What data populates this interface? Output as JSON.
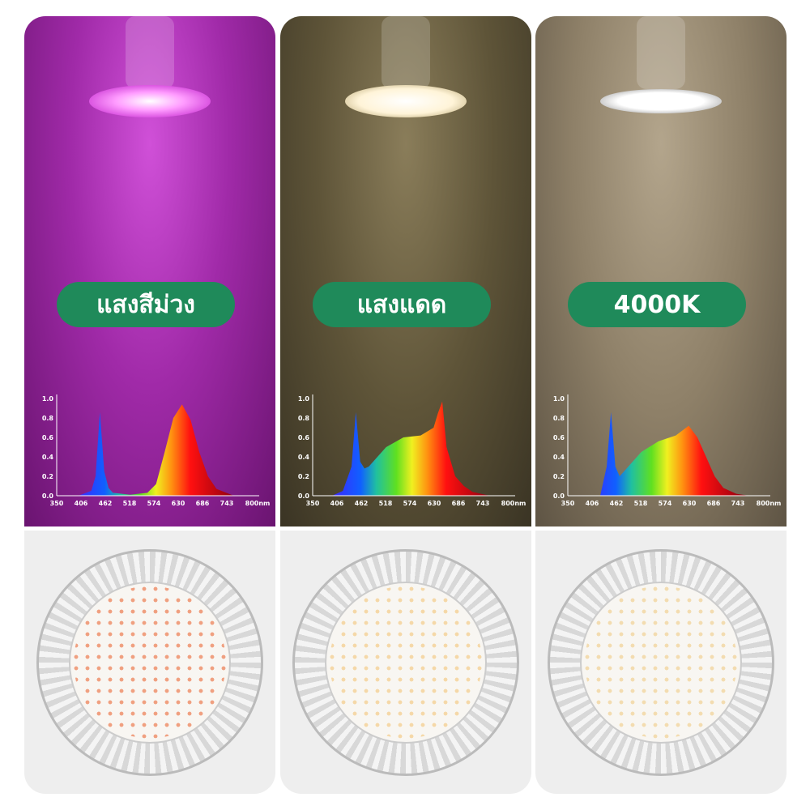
{
  "panels": [
    {
      "label": "แสงสีม่วง",
      "spectrum": "purple"
    },
    {
      "label": "แสงแดด",
      "spectrum": "sunlight"
    },
    {
      "label": "4000K",
      "spectrum": "4000K"
    }
  ],
  "chart_data": [
    {
      "type": "area",
      "xlabel": "",
      "ylabel": "",
      "x_ticks": [
        "350",
        "406",
        "462",
        "518",
        "574",
        "630",
        "686",
        "743",
        "800nm"
      ],
      "y_ticks": [
        "0.0",
        "0.2",
        "0.4",
        "0.6",
        "0.8",
        "1.0"
      ],
      "xlim": [
        350,
        800
      ],
      "ylim": [
        0,
        1
      ],
      "x": [
        400,
        430,
        440,
        450,
        460,
        470,
        480,
        520,
        560,
        580,
        600,
        620,
        640,
        660,
        680,
        700,
        720,
        760
      ],
      "values": [
        0,
        0.05,
        0.2,
        0.86,
        0.25,
        0.08,
        0.03,
        0.01,
        0.03,
        0.12,
        0.45,
        0.8,
        0.94,
        0.78,
        0.45,
        0.2,
        0.07,
        0
      ]
    },
    {
      "type": "area",
      "xlabel": "",
      "ylabel": "",
      "x_ticks": [
        "350",
        "406",
        "462",
        "518",
        "574",
        "630",
        "686",
        "743",
        "800nm"
      ],
      "y_ticks": [
        "0.0",
        "0.2",
        "0.4",
        "0.6",
        "0.8",
        "1.0"
      ],
      "xlim": [
        350,
        800
      ],
      "ylim": [
        0,
        1
      ],
      "x": [
        395,
        420,
        440,
        450,
        460,
        470,
        480,
        500,
        520,
        560,
        600,
        630,
        640,
        650,
        660,
        680,
        700,
        720,
        760
      ],
      "values": [
        0,
        0.05,
        0.3,
        0.86,
        0.35,
        0.28,
        0.3,
        0.4,
        0.5,
        0.6,
        0.62,
        0.7,
        0.85,
        0.97,
        0.5,
        0.2,
        0.1,
        0.04,
        0
      ]
    },
    {
      "type": "area",
      "xlabel": "",
      "ylabel": "",
      "x_ticks": [
        "350",
        "406",
        "462",
        "518",
        "574",
        "630",
        "686",
        "743",
        "800nm"
      ],
      "y_ticks": [
        "0.0",
        "0.2",
        "0.4",
        "0.6",
        "0.8",
        "1.0"
      ],
      "xlim": [
        350,
        800
      ],
      "ylim": [
        0,
        1
      ],
      "x": [
        425,
        440,
        450,
        460,
        470,
        490,
        520,
        560,
        600,
        630,
        650,
        670,
        690,
        710,
        740,
        770
      ],
      "values": [
        0,
        0.3,
        0.86,
        0.3,
        0.2,
        0.3,
        0.45,
        0.56,
        0.62,
        0.72,
        0.6,
        0.4,
        0.2,
        0.08,
        0.02,
        0
      ]
    }
  ],
  "led_colors": [
    "#f0a080",
    "#f5d8a8",
    "#f3dcb0"
  ]
}
